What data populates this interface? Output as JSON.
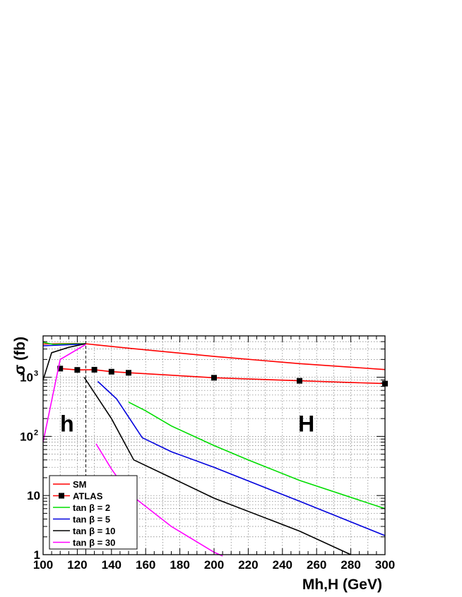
{
  "chart_data": {
    "type": "line",
    "xlabel": "Mh,H (GeV)",
    "ylabel": "σ (fb)",
    "yscale": "log",
    "xlim": [
      100,
      300
    ],
    "ylim": [
      1,
      5000
    ],
    "grid": true,
    "legend_position": "bottom-left",
    "x_ticks": [
      "100",
      "120",
      "140",
      "160",
      "180",
      "200",
      "220",
      "240",
      "260",
      "280",
      "300"
    ],
    "y_ticks": [
      {
        "value": 1,
        "label": "1"
      },
      {
        "value": 10,
        "label": "10"
      },
      {
        "value": 100,
        "label": "10",
        "sup": "2"
      },
      {
        "value": 1000,
        "label": "10",
        "sup": "3"
      }
    ],
    "annotations": [
      {
        "text": "h",
        "x": 114,
        "y": 120
      },
      {
        "text": "H",
        "x": 254,
        "y": 120
      }
    ],
    "divider_x": 125,
    "series": [
      {
        "name": "SM",
        "color": "#ff0000",
        "marker": "none",
        "points": [
          [
            100,
            3650
          ],
          [
            110,
            3700
          ],
          [
            120,
            3720
          ],
          [
            125,
            3680
          ],
          [
            130,
            3560
          ],
          [
            150,
            3100
          ],
          [
            200,
            2250
          ],
          [
            250,
            1700
          ],
          [
            300,
            1350
          ]
        ]
      },
      {
        "name": "ATLAS",
        "color": "#ff0000",
        "marker": "square",
        "points": [
          [
            110,
            1400
          ],
          [
            120,
            1330
          ],
          [
            130,
            1340
          ],
          [
            140,
            1240
          ],
          [
            150,
            1190
          ],
          [
            200,
            980
          ],
          [
            250,
            870
          ],
          [
            300,
            780
          ]
        ]
      },
      {
        "name": "tan β = 2",
        "color": "#00dd00",
        "marker": "none",
        "segments": [
          [
            [
              100,
              3900
            ],
            [
              106,
              3600
            ],
            [
              110,
              3650
            ],
            [
              125,
              3700
            ]
          ],
          [
            [
              150,
              380
            ],
            [
              160,
              270
            ],
            [
              175,
              150
            ],
            [
              200,
              70
            ],
            [
              220,
              40
            ],
            [
              250,
              18
            ],
            [
              300,
              6
            ]
          ]
        ]
      },
      {
        "name": "tan β = 5",
        "color": "#0000dd",
        "marker": "none",
        "segments": [
          [
            [
              100,
              3400
            ],
            [
              110,
              3500
            ],
            [
              125,
              3650
            ]
          ],
          [
            [
              132,
              850
            ],
            [
              143,
              430
            ],
            [
              158,
              95
            ],
            [
              175,
              55
            ],
            [
              200,
              30
            ],
            [
              250,
              8
            ],
            [
              300,
              2.1
            ]
          ]
        ]
      },
      {
        "name": "tan β = 10",
        "color": "#000000",
        "marker": "none",
        "segments": [
          [
            [
              100,
              900
            ],
            [
              105,
              2600
            ],
            [
              115,
              3200
            ],
            [
              125,
              3700
            ]
          ],
          [
            [
              124,
              1000
            ],
            [
              140,
              200
            ],
            [
              153,
              40
            ],
            [
              175,
              20
            ],
            [
              200,
              9
            ],
            [
              250,
              2.5
            ],
            [
              280,
              1
            ]
          ]
        ]
      },
      {
        "name": "tan β = 30",
        "color": "#ff00ff",
        "marker": "none",
        "segments": [
          [
            [
              100,
              80
            ],
            [
              110,
              2000
            ],
            [
              125,
              3600
            ]
          ],
          [
            [
              131,
              75
            ],
            [
              140,
              28
            ],
            [
              150,
              11
            ],
            [
              175,
              3
            ],
            [
              200,
              1.1
            ],
            [
              205,
              0.95
            ]
          ]
        ]
      }
    ]
  }
}
